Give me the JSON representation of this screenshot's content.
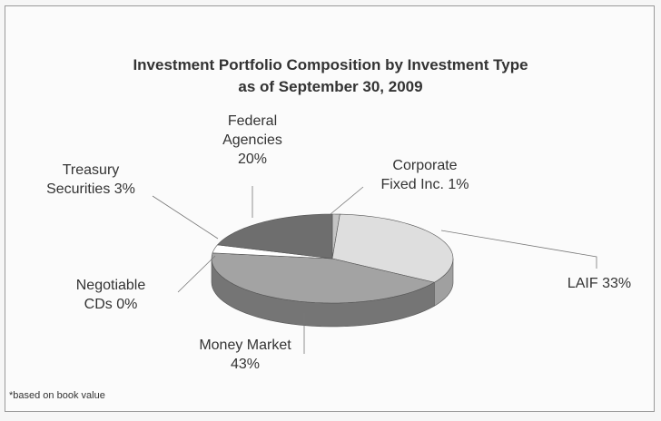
{
  "chart_data": {
    "type": "pie3d",
    "title": "Investment Portfolio Composition by Investment Type",
    "subtitle": "as of September 30, 2009",
    "categories": [
      "Corporate Fixed Inc.",
      "LAIF",
      "Money Market",
      "Negotiable CDs",
      "Treasury Securities",
      "Federal Agencies"
    ],
    "values": [
      1,
      33,
      43,
      0,
      3,
      20
    ],
    "value_labels": [
      "1%",
      "33%",
      "43%",
      "0%",
      "3%",
      "20%"
    ],
    "colors": [
      "#c4c4c4",
      "#dedede",
      "#a3a3a3",
      "#888888",
      "#ffffff",
      "#6e6e6e"
    ],
    "footnote": "*based on book value"
  }
}
